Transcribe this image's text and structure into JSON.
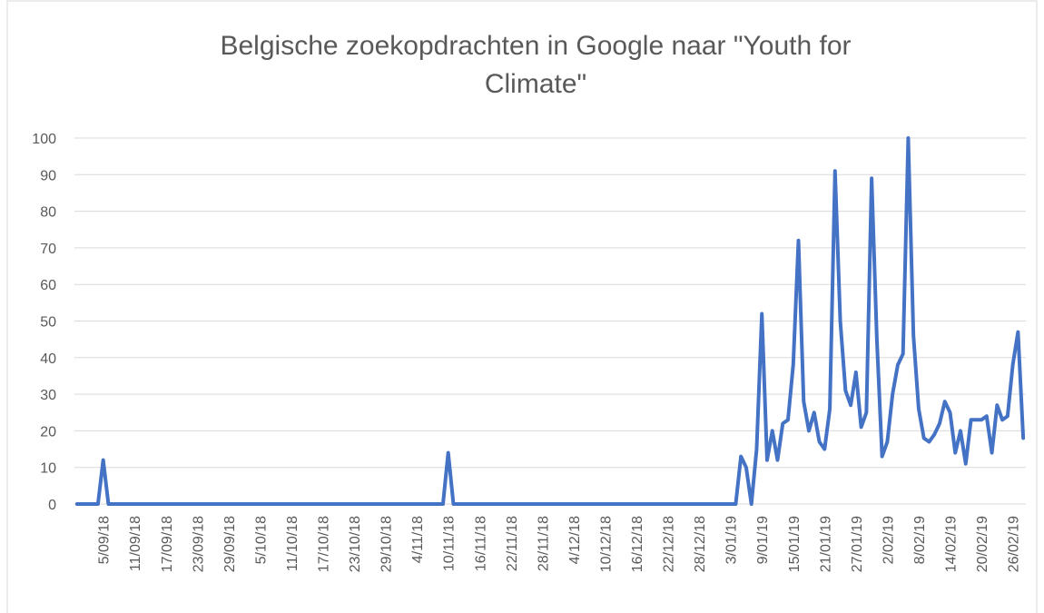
{
  "chart_data": {
    "type": "line",
    "title": "Belgische zoekopdrachten in Google naar \"Youth for Climate\"",
    "color": "#4472c4",
    "grid": true,
    "ylim": [
      0,
      100
    ],
    "yticks": [
      0,
      10,
      20,
      30,
      40,
      50,
      60,
      70,
      80,
      90,
      100
    ],
    "categories": [
      null,
      null,
      null,
      null,
      null,
      "5/09/18",
      null,
      null,
      null,
      null,
      null,
      "11/09/18",
      null,
      null,
      null,
      null,
      null,
      "17/09/18",
      null,
      null,
      null,
      null,
      null,
      "23/09/18",
      null,
      null,
      null,
      null,
      null,
      "29/09/18",
      null,
      null,
      null,
      null,
      null,
      "5/10/18",
      null,
      null,
      null,
      null,
      null,
      "11/10/18",
      null,
      null,
      null,
      null,
      null,
      "17/10/18",
      null,
      null,
      null,
      null,
      null,
      "23/10/18",
      null,
      null,
      null,
      null,
      null,
      "29/10/18",
      null,
      null,
      null,
      null,
      null,
      "4/11/18",
      null,
      null,
      null,
      null,
      null,
      "10/11/18",
      null,
      null,
      null,
      null,
      null,
      "16/11/18",
      null,
      null,
      null,
      null,
      null,
      "22/11/18",
      null,
      null,
      null,
      null,
      null,
      "28/11/18",
      null,
      null,
      null,
      null,
      null,
      "4/12/18",
      null,
      null,
      null,
      null,
      null,
      "10/12/18",
      null,
      null,
      null,
      null,
      null,
      "16/12/18",
      null,
      null,
      null,
      null,
      null,
      "22/12/18",
      null,
      null,
      null,
      null,
      null,
      "28/12/18",
      null,
      null,
      null,
      null,
      null,
      "3/01/19",
      null,
      null,
      null,
      null,
      null,
      "9/01/19",
      null,
      null,
      null,
      null,
      null,
      "15/01/19",
      null,
      null,
      null,
      null,
      null,
      "21/01/19",
      null,
      null,
      null,
      null,
      null,
      "27/01/19",
      null,
      null,
      null,
      null,
      null,
      "2/02/19",
      null,
      null,
      null,
      null,
      null,
      "8/02/19",
      null,
      null,
      null,
      null,
      null,
      "14/02/19",
      null,
      null,
      null,
      null,
      null,
      "20/02/19",
      null,
      null,
      null,
      null,
      null,
      "26/02/19",
      null,
      null
    ],
    "values": [
      0,
      0,
      0,
      0,
      0,
      12,
      0,
      0,
      0,
      0,
      0,
      0,
      0,
      0,
      0,
      0,
      0,
      0,
      0,
      0,
      0,
      0,
      0,
      0,
      0,
      0,
      0,
      0,
      0,
      0,
      0,
      0,
      0,
      0,
      0,
      0,
      0,
      0,
      0,
      0,
      0,
      0,
      0,
      0,
      0,
      0,
      0,
      0,
      0,
      0,
      0,
      0,
      0,
      0,
      0,
      0,
      0,
      0,
      0,
      0,
      0,
      0,
      0,
      0,
      0,
      0,
      0,
      0,
      0,
      0,
      0,
      14,
      0,
      0,
      0,
      0,
      0,
      0,
      0,
      0,
      0,
      0,
      0,
      0,
      0,
      0,
      0,
      0,
      0,
      0,
      0,
      0,
      0,
      0,
      0,
      0,
      0,
      0,
      0,
      0,
      0,
      0,
      0,
      0,
      0,
      0,
      0,
      0,
      0,
      0,
      0,
      0,
      0,
      0,
      0,
      0,
      0,
      0,
      0,
      0,
      0,
      0,
      0,
      0,
      0,
      0,
      0,
      13,
      10,
      0,
      15,
      52,
      12,
      20,
      12,
      22,
      23,
      38,
      72,
      28,
      20,
      25,
      17,
      15,
      26,
      91,
      50,
      31,
      27,
      36,
      21,
      25,
      89,
      45,
      13,
      17,
      30,
      38,
      41,
      100,
      46,
      26,
      18,
      17,
      19,
      22,
      28,
      25,
      14,
      20,
      11,
      23,
      23,
      23,
      24,
      14,
      27,
      23,
      24,
      38,
      47,
      18
    ]
  }
}
